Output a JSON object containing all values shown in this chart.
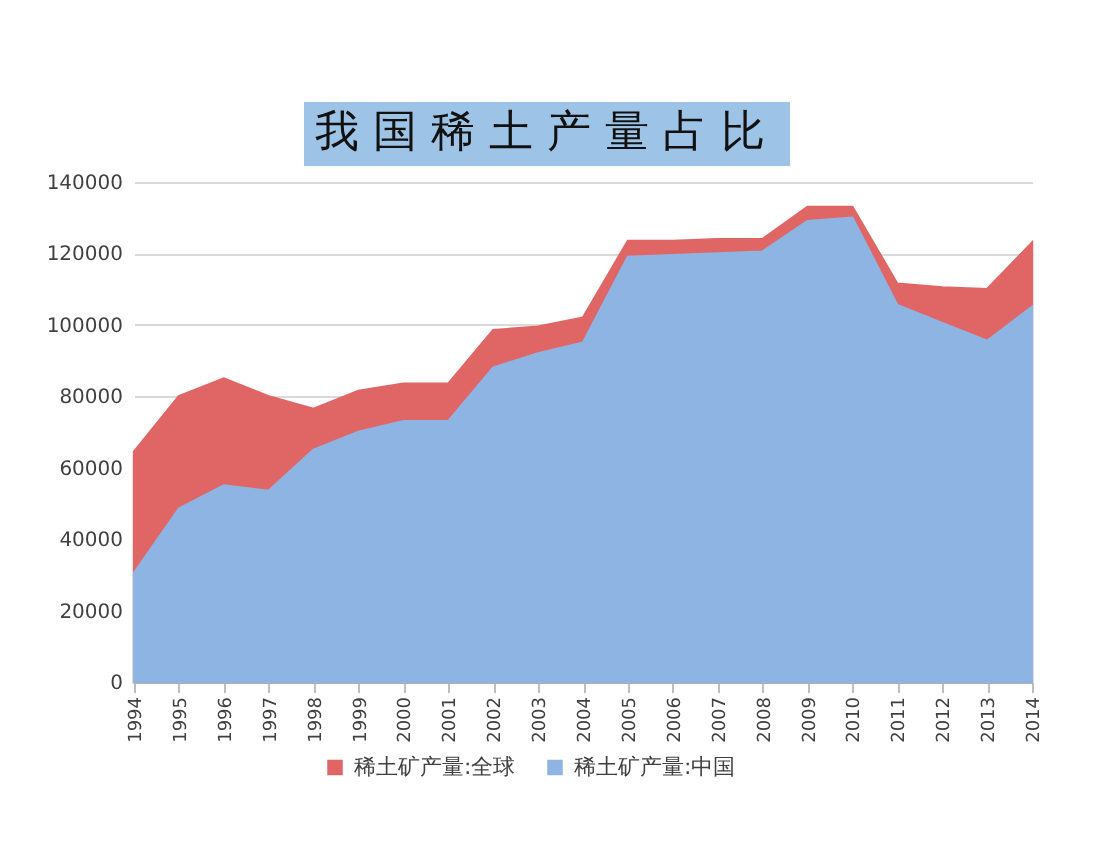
{
  "chart_data": {
    "type": "area",
    "title": "我国稀土产量占比",
    "categories": [
      "1994",
      "1995",
      "1996",
      "1997",
      "1998",
      "1999",
      "2000",
      "2001",
      "2002",
      "2003",
      "2004",
      "2005",
      "2006",
      "2007",
      "2008",
      "2009",
      "2010",
      "2011",
      "2012",
      "2013",
      "2014"
    ],
    "series": [
      {
        "name": "稀土矿产量:全球",
        "color": "#e06666",
        "values": [
          64500,
          80000,
          85000,
          80000,
          76500,
          81500,
          83500,
          83500,
          98500,
          99500,
          102000,
          123500,
          123500,
          124000,
          124000,
          133000,
          133000,
          111500,
          110500,
          110000,
          123000
        ]
      },
      {
        "name": "稀土矿产量:中国",
        "color": "#8eb4e3",
        "values": [
          30500,
          48500,
          55000,
          53500,
          65000,
          70000,
          73000,
          73000,
          88000,
          92000,
          95000,
          119000,
          119500,
          120000,
          120500,
          129000,
          130000,
          105500,
          100500,
          95500,
          105000
        ]
      }
    ],
    "ylim": [
      0,
      140000
    ],
    "yticks": [
      0,
      20000,
      40000,
      60000,
      80000,
      100000,
      120000,
      140000
    ],
    "grid": "y",
    "legend": "bottom"
  }
}
